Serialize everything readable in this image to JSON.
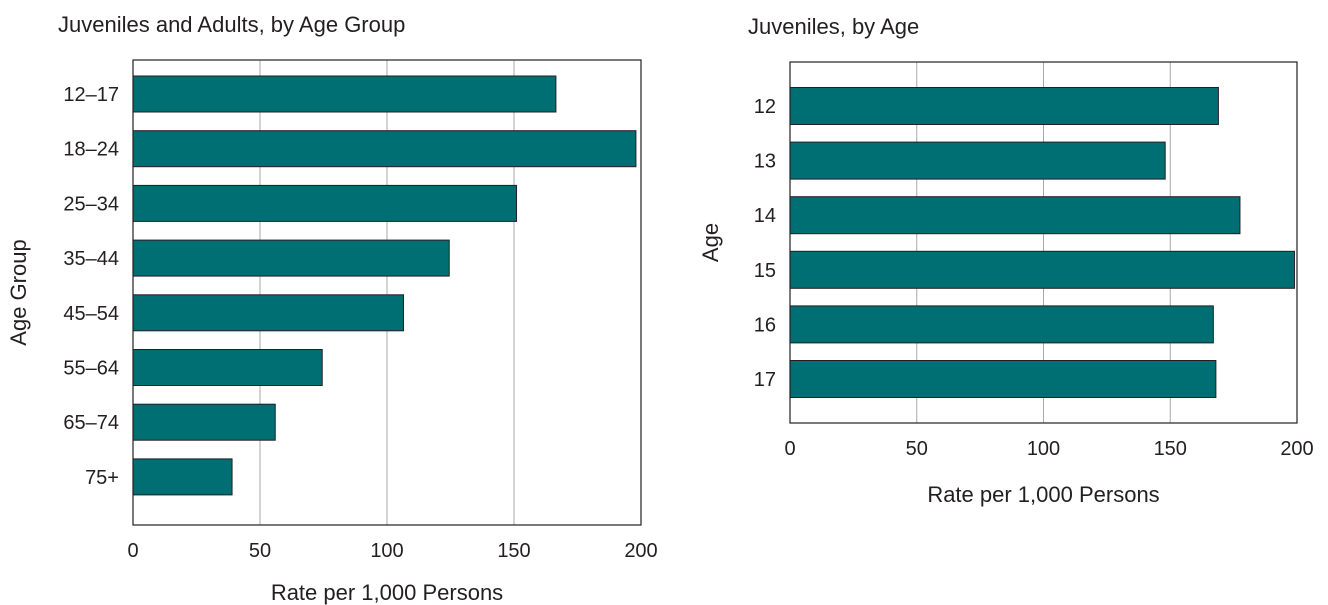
{
  "chart_data": [
    {
      "type": "bar",
      "orientation": "horizontal",
      "title": "Juveniles and Adults, by Age Group",
      "xlabel": "Rate per 1,000 Persons",
      "ylabel": "Age Group",
      "xlim": [
        0,
        200
      ],
      "xticks": [
        0,
        50,
        100,
        150,
        200
      ],
      "grid": "vertical",
      "bar_color": "#006f74",
      "categories": [
        "12–17",
        "18–24",
        "25–34",
        "35–44",
        "45–54",
        "55–64",
        "65–74",
        "75+"
      ],
      "values": [
        166.5,
        198,
        151,
        124.5,
        106.5,
        74.5,
        56,
        39
      ]
    },
    {
      "type": "bar",
      "orientation": "horizontal",
      "title": "Juveniles, by Age",
      "xlabel": "Rate per 1,000 Persons",
      "ylabel": "Age",
      "xlim": [
        0,
        200
      ],
      "xticks": [
        0,
        50,
        100,
        150,
        200
      ],
      "grid": "vertical",
      "bar_color": "#006f74",
      "categories": [
        "12",
        "13",
        "14",
        "15",
        "16",
        "17"
      ],
      "values": [
        169,
        148,
        177.5,
        199,
        167,
        168
      ]
    }
  ]
}
